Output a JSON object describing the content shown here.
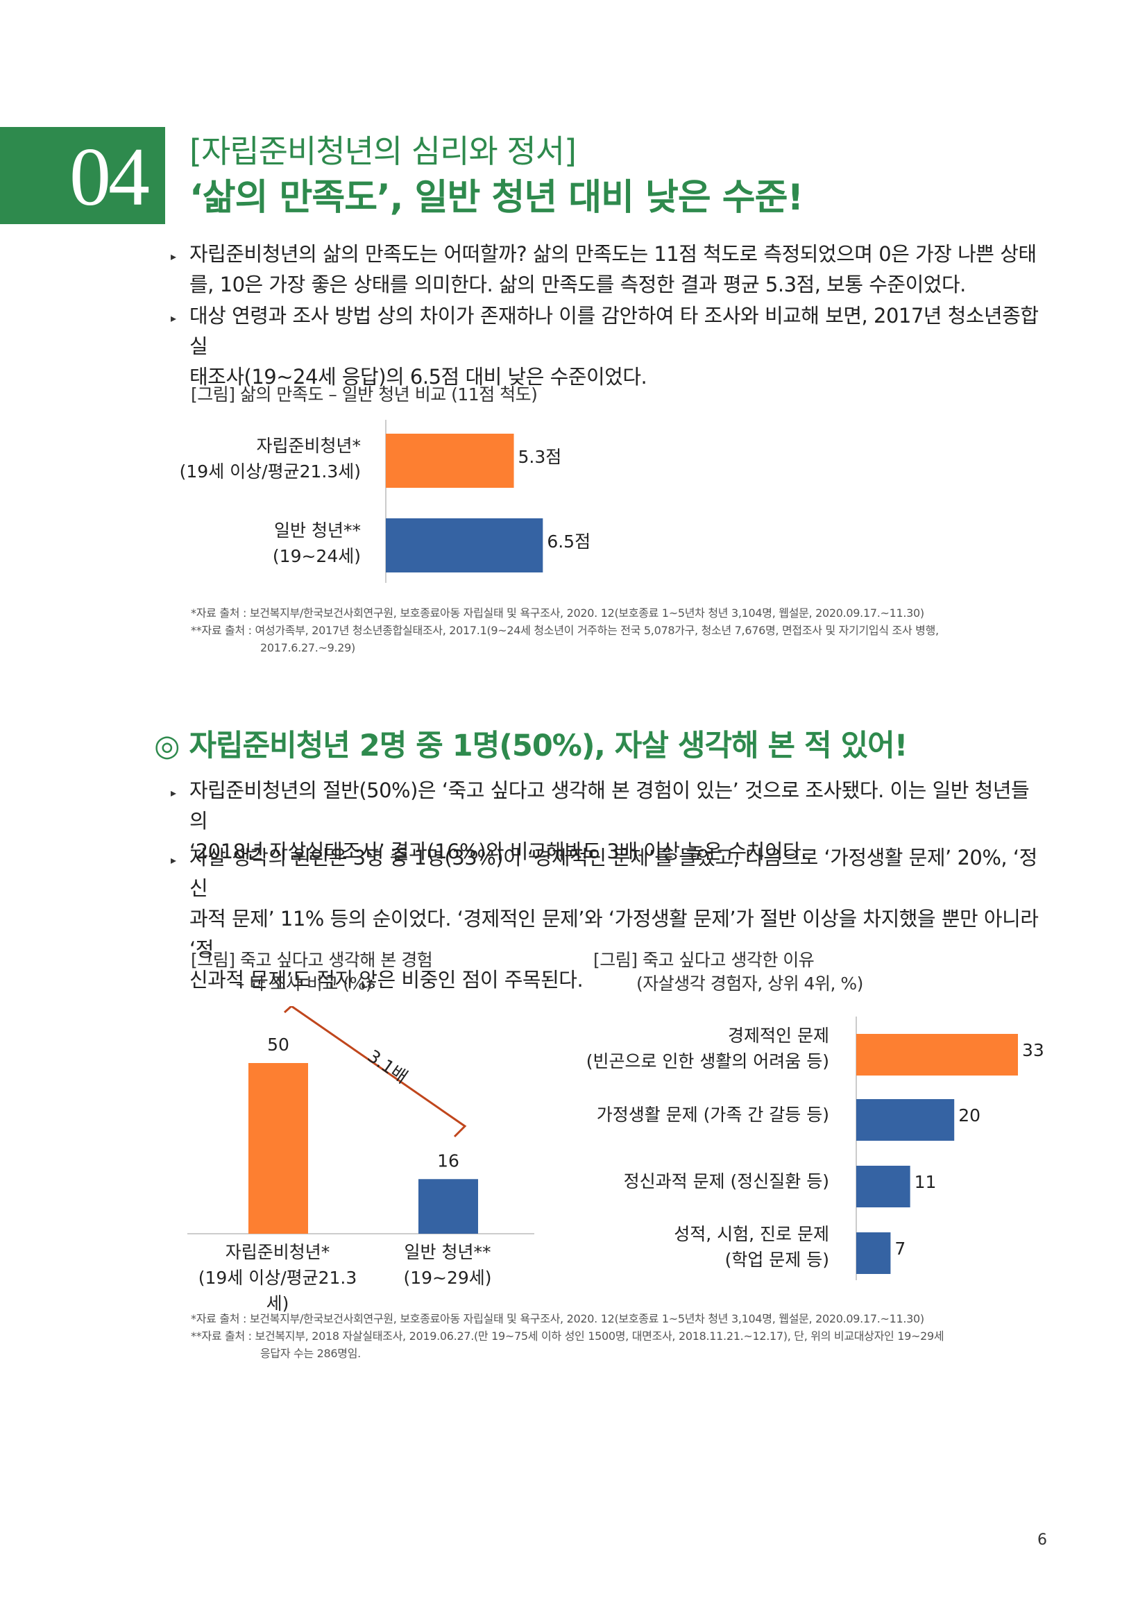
{
  "header": {
    "number": "04",
    "subtitle": "[자립준비청년의 심리와 정서]",
    "title": "‘삶의 만족도’, 일반 청년 대비 낮은 수준!"
  },
  "section1": {
    "bullets": [
      {
        "lines": [
          "자립준비청년의 삶의 만족도는 어떠할까? 삶의 만족도는 11점 척도로 측정되었으며 0은 가장 나쁜 상태",
          "를, 10은 가장 좋은 상태를 의미한다. 삶의 만족도를 측정한 결과 평균 5.3점, 보통 수준이었다."
        ]
      },
      {
        "lines": [
          "대상 연령과 조사 방법 상의 차이가 존재하나 이를 감안하여 타 조사와 비교해 보면, 2017년 청소년종합실",
          "태조사(19~24세 응답)의 6.5점 대비 낮은 수준이었다."
        ]
      }
    ],
    "figure_caption": "[그림] 삶의 만족도 – 일반 청년 비교 (11점 척도)",
    "sources": [
      "*자료 출처 : 보건복지부/한국보건사회연구원, 보호종료아동 자립실태 및 욕구조사, 2020. 12(보호종료 1~5년차 청년 3,104명, 웹설문, 2020.09.17.~11.30)",
      "**자료 출처 : 여성가족부, 2017년 청소년종합실태조사, 2017.1(9~24세 청소년이 거주하는 전국 5,078가구, 청소년 7,676명, 면접조사 및 자기기입식 조사 병행,",
      "2017.6.27.~9.29)"
    ]
  },
  "section2": {
    "heading": "◎ 자립준비청년 2명 중 1명(50%), 자살 생각해 본 적 있어!",
    "bullets": [
      {
        "lines": [
          "자립준비청년의 절반(50%)은 ‘죽고 싶다고 생각해 본 경험이 있는’ 것으로 조사됐다. 이는 일반 청년들의",
          "‘2018년 자살실태조사’ 결과(16%)와 비교해봐도 3배 이상 높은 수치이다."
        ]
      },
      {
        "lines": [
          "자살 생각의 원인은 3명 중 1명(33%)이 ‘경제적인 문제’를 들었고, 다음으로 ‘가정생활 문제’ 20%, ‘정신",
          "과적 문제’ 11% 등의 순이었다. ‘경제적인 문제’와 ‘가정생활 문제’가 절반 이상을 차지했을 뿐만 아니라 ‘정",
          "신과적 문제’도 적지 않은 비중인 점이 주목된다."
        ]
      }
    ],
    "left_caption": [
      "[그림] 죽고 싶다고 생각해 본 경험",
      "– 타 조사 비교 (%)"
    ],
    "right_caption": [
      "[그림] 죽고 싶다고 생각한 이유",
      "(자살생각 경험자, 상위 4위, %)"
    ],
    "ratio_label": "3.1배",
    "sources": [
      "*자료 출처 : 보건복지부/한국보건사회연구원, 보호종료아동 자립실태 및 욕구조사, 2020. 12(보호종료 1~5년차 청년 3,104명, 웹설문, 2020.09.17.~11.30)",
      "**자료 출처 : 보건복지부, 2018 자살실태조사, 2019.06.27.(만 19~75세 이하 성인 1500명, 대면조사, 2018.11.21.~12.17), 단, 위의 비교대상자인 19~29세",
      "응답자 수는 286명임."
    ]
  },
  "page_number": "6",
  "colors": {
    "accent": "#2e8a4d",
    "orange": "#fd7f31",
    "blue": "#3563a3",
    "line": "#c0461c"
  },
  "chart_data": [
    {
      "type": "bar",
      "orientation": "horizontal",
      "categories": [
        [
          "자립준비청년*",
          "(19세 이상/평균21.3세)"
        ],
        [
          "일반 청년**",
          "(19~24세)"
        ]
      ],
      "values": [
        5.3,
        6.5
      ],
      "value_labels": [
        "5.3점",
        "6.5점"
      ],
      "colors": [
        "#fd7f31",
        "#3563a3"
      ],
      "xlim": [
        0,
        11
      ]
    },
    {
      "type": "bar",
      "orientation": "vertical",
      "categories": [
        [
          "자립준비청년*",
          "(19세 이상/평균21.3세)"
        ],
        [
          "일반 청년**",
          "(19~29세)"
        ]
      ],
      "values": [
        50,
        16
      ],
      "value_labels": [
        "50",
        "16"
      ],
      "colors": [
        "#fd7f31",
        "#3563a3"
      ],
      "ylim": [
        0,
        60
      ]
    },
    {
      "type": "bar",
      "orientation": "horizontal",
      "categories": [
        [
          "경제적인 문제",
          "(빈곤으로 인한 생활의 어려움 등)"
        ],
        [
          "가정생활 문제 (가족 간 갈등 등)"
        ],
        [
          "정신과적 문제 (정신질환 등)"
        ],
        [
          "성적, 시험, 진로 문제",
          "(학업 문제 등)"
        ]
      ],
      "values": [
        33,
        20,
        11,
        7
      ],
      "value_labels": [
        "33",
        "20",
        "11",
        "7"
      ],
      "colors": [
        "#fd7f31",
        "#3563a3",
        "#3563a3",
        "#3563a3"
      ],
      "xlim": [
        0,
        34
      ]
    }
  ]
}
